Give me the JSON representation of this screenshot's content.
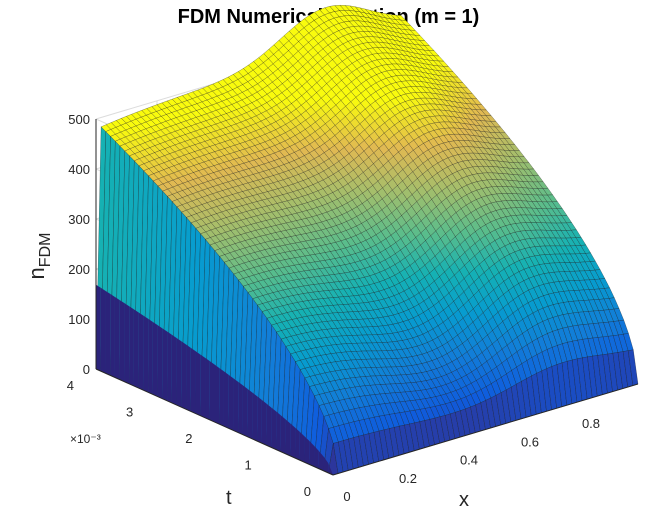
{
  "chart_data": {
    "type": "surface",
    "title": "FDM Numerical Solution (m = 1)",
    "xlabel": "x",
    "ylabel": "t",
    "zlabel_main": "n",
    "zlabel_sub": "FDM",
    "t_multiplier": "×10⁻³",
    "xlim": [
      0,
      1
    ],
    "tlim": [
      0,
      0.004
    ],
    "zlim": [
      0,
      500
    ],
    "xticks": [
      "0",
      "0.2",
      "0.4",
      "0.6",
      "0.8"
    ],
    "tticks": [
      "0",
      "1",
      "2",
      "3",
      "4"
    ],
    "zticks": [
      "0",
      "100",
      "200",
      "300",
      "400",
      "500"
    ],
    "grid": true,
    "colormap": "parula",
    "surface_samples": {
      "x": [
        0.0,
        0.1,
        0.2,
        0.3,
        0.4,
        0.5,
        0.6,
        0.7,
        0.8,
        0.9,
        1.0
      ],
      "t_at_0.004": [
        0,
        400,
        445,
        470,
        485,
        495,
        500,
        502,
        505,
        508,
        510
      ],
      "t_at_0.002": [
        0,
        270,
        255,
        205,
        160,
        150,
        170,
        260,
        320,
        355,
        370
      ],
      "t_at_0.001": [
        0,
        210,
        170,
        120,
        70,
        45,
        40,
        50,
        90,
        140,
        170
      ]
    }
  }
}
